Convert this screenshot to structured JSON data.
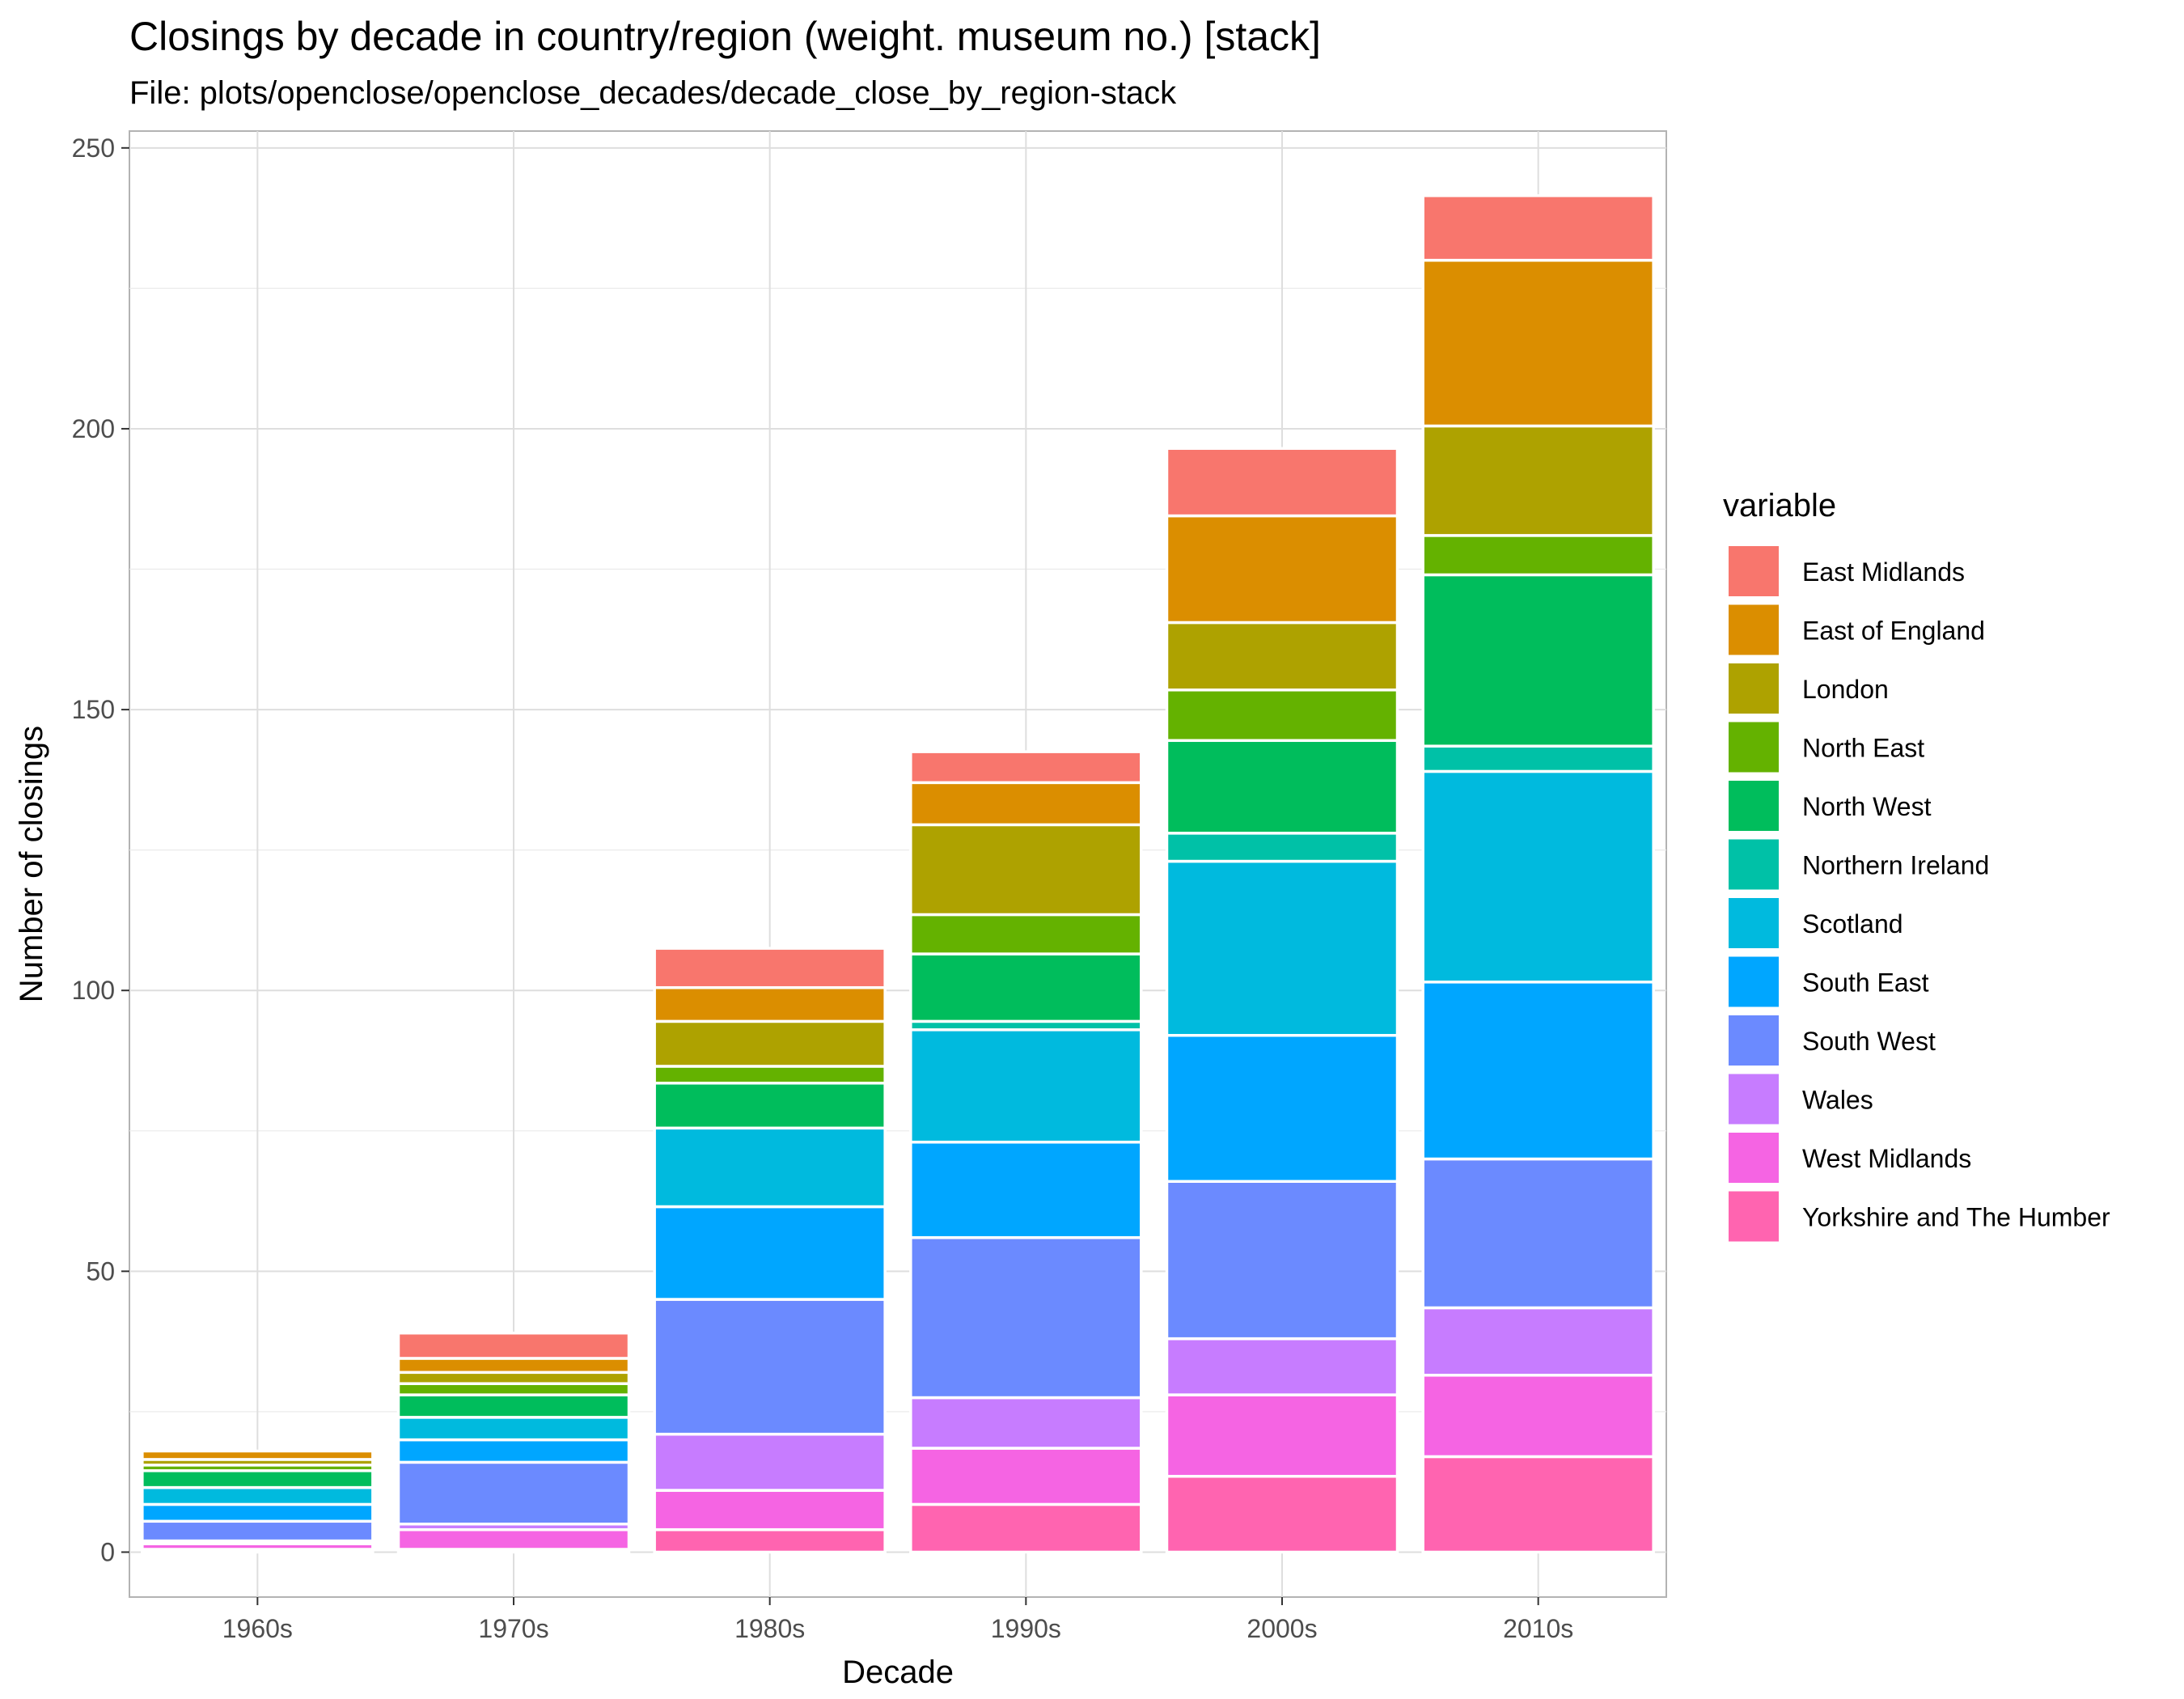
{
  "chart_data": {
    "type": "bar",
    "stacked": true,
    "title": "Closings by decade in country/region (weight. museum no.) [stack]",
    "subtitle": "File: plots/openclose/openclose_decades/decade_close_by_region-stack",
    "xlabel": "Decade",
    "ylabel": "Number of closings",
    "ylim": [
      -8,
      253
    ],
    "yticks": [
      0,
      50,
      100,
      150,
      200,
      250
    ],
    "grid": true,
    "legend_title": "variable",
    "legend_position": "right",
    "categories": [
      "1960s",
      "1970s",
      "1980s",
      "1990s",
      "2000s",
      "2010s"
    ],
    "series": [
      {
        "name": "East Midlands",
        "color": "#F8766D",
        "values": [
          0,
          4.5,
          7,
          5.5,
          12,
          11.5
        ]
      },
      {
        "name": "East of England",
        "color": "#DB8E00",
        "values": [
          1.5,
          2.5,
          6,
          7.5,
          19,
          29.5
        ]
      },
      {
        "name": "London",
        "color": "#AEA200",
        "values": [
          1,
          2,
          8,
          16,
          12,
          19.5
        ]
      },
      {
        "name": "North East",
        "color": "#64B200",
        "values": [
          1,
          2,
          3,
          7,
          9,
          7
        ]
      },
      {
        "name": "North West",
        "color": "#00BD5C",
        "values": [
          3,
          4,
          8,
          12,
          16.5,
          30.5
        ]
      },
      {
        "name": "Northern Ireland",
        "color": "#00C1A7",
        "values": [
          0,
          0,
          0,
          1.5,
          5,
          4.5
        ]
      },
      {
        "name": "Scotland",
        "color": "#00BADE",
        "values": [
          3,
          4,
          14,
          20,
          31,
          37.5
        ]
      },
      {
        "name": "South East",
        "color": "#00A6FF",
        "values": [
          3,
          4,
          16.5,
          17,
          26,
          31.5
        ]
      },
      {
        "name": "South West",
        "color": "#6B8AFF",
        "values": [
          3.5,
          11,
          24,
          28.5,
          28,
          26.5
        ]
      },
      {
        "name": "Wales",
        "color": "#C77CFF",
        "values": [
          0.5,
          1,
          10,
          9,
          10,
          12
        ]
      },
      {
        "name": "West Midlands",
        "color": "#F564E3",
        "values": [
          1,
          3.5,
          7,
          10,
          14.5,
          14.5
        ]
      },
      {
        "name": "Yorkshire and The Humber",
        "color": "#FF64B0",
        "values": [
          0.5,
          0.5,
          4,
          8.5,
          13.5,
          17
        ]
      }
    ]
  }
}
